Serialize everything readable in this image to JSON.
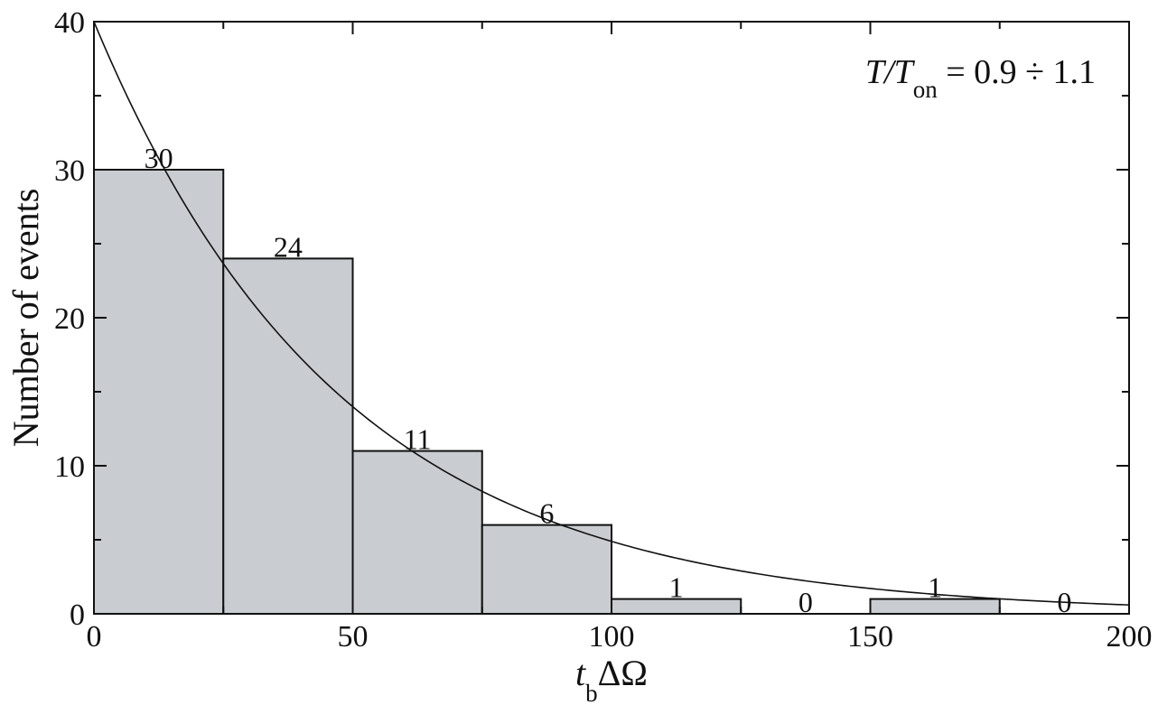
{
  "chart_data": {
    "type": "bar",
    "title": "",
    "xlabel": {
      "main": "t",
      "sub": "b",
      "rest": "ΔΩ"
    },
    "ylabel": "Number of events",
    "xlim": [
      0,
      200
    ],
    "ylim": [
      0,
      40
    ],
    "x_ticks": [
      0,
      50,
      100,
      150,
      200
    ],
    "y_ticks": [
      0,
      10,
      20,
      30,
      40
    ],
    "x_tick_labels": [
      "0",
      "50",
      "100",
      "150",
      "200"
    ],
    "y_tick_labels": [
      "0",
      "10",
      "20",
      "30",
      "40"
    ],
    "bin_width": 25,
    "bin_starts": [
      0,
      25,
      50,
      75,
      100,
      125,
      150,
      175
    ],
    "values": [
      30,
      24,
      11,
      6,
      1,
      0,
      1,
      0
    ],
    "data_labels": [
      "30",
      "24",
      "11",
      "6",
      "1",
      "0",
      "1",
      "0"
    ],
    "fit_curve": {
      "type": "exponential",
      "y0": 40,
      "tau": 47.6
    },
    "annotation": {
      "main": "T/T",
      "sub": "on",
      "rest": " = 0.9 ÷ 1.1"
    },
    "grid": false,
    "bar_color": "#c9ccd0",
    "edge_color": "#111111",
    "line_color": "#111111"
  }
}
